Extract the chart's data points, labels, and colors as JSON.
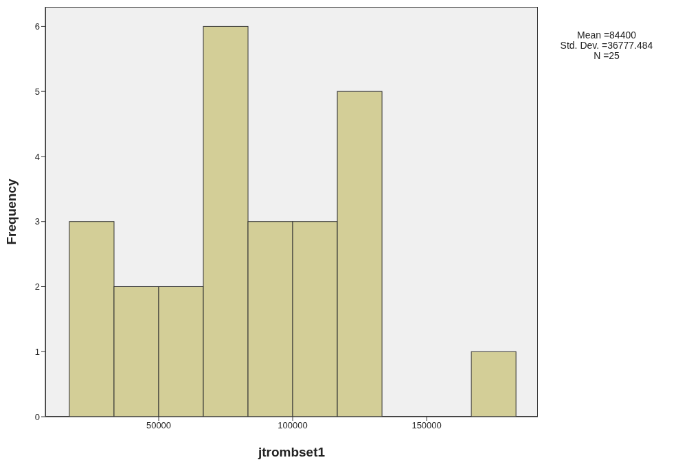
{
  "chart_data": {
    "type": "histogram",
    "xlabel": "jtrombset1",
    "ylabel": "Frequency",
    "bins": [
      16667,
      33333,
      50000,
      66667,
      83333,
      100000,
      116667,
      133333,
      150000,
      166667,
      183333
    ],
    "values": [
      3,
      2,
      2,
      6,
      3,
      3,
      5,
      0,
      0,
      1
    ],
    "color": "#d3ce97",
    "xlim": [
      7700,
      191500
    ],
    "xticks": [
      50000,
      100000,
      150000
    ],
    "ylim": [
      0,
      6.3
    ],
    "yticks": [
      0,
      1,
      2,
      3,
      4,
      5,
      6
    ],
    "annotations": [
      "Mean =84400",
      "Std. Dev. =36777.484",
      "N =25"
    ]
  }
}
